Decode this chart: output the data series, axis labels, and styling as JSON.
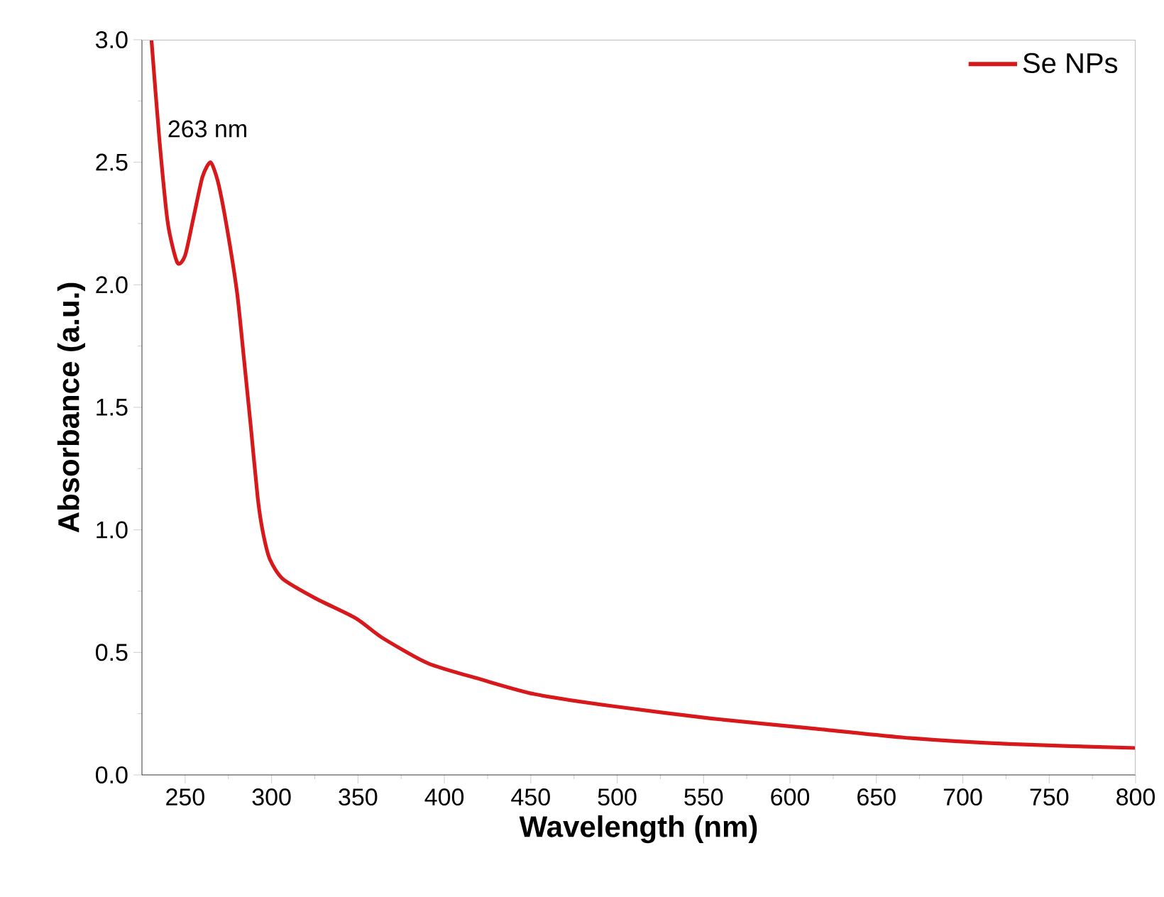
{
  "chart_data": {
    "type": "line",
    "xlabel": "Wavelength (nm)",
    "ylabel": "Absorbance (a.u.)",
    "xlim": [
      225,
      800
    ],
    "ylim": [
      0,
      3
    ],
    "xticks": [
      250,
      300,
      350,
      400,
      450,
      500,
      550,
      600,
      650,
      700,
      750,
      800
    ],
    "yticks": [
      {
        "value": 0,
        "label": "0.0"
      },
      {
        "value": 0.5,
        "label": "0.5"
      },
      {
        "value": 1,
        "label": "1.0"
      },
      {
        "value": 1.5,
        "label": "1.5"
      },
      {
        "value": 2,
        "label": "2.0"
      },
      {
        "value": 2.5,
        "label": "2.5"
      },
      {
        "value": 3,
        "label": "3.0"
      }
    ],
    "legend": "top right",
    "grid": false,
    "annotations": [
      {
        "text": "263 nm",
        "x": 263,
        "y": 2.5
      }
    ],
    "series": [
      {
        "name": "Se NPs",
        "color": "#d7191c",
        "x": [
          230.5,
          235,
          240,
          245.5,
          250,
          255,
          260,
          264.7,
          269,
          274,
          280,
          284,
          288,
          292,
          295,
          299,
          306.5,
          325.6,
          348.6,
          364,
          390.7,
          421,
          452,
          498,
          555,
          612.5,
          670,
          727,
          800
        ],
        "values": [
          3.0,
          2.6,
          2.25,
          2.09,
          2.12,
          2.28,
          2.44,
          2.5,
          2.42,
          2.24,
          1.97,
          1.7,
          1.42,
          1.13,
          0.99,
          0.88,
          0.8,
          0.72,
          0.64,
          0.56,
          0.455,
          0.39,
          0.33,
          0.28,
          0.23,
          0.19,
          0.15,
          0.126,
          0.11
        ]
      }
    ]
  }
}
